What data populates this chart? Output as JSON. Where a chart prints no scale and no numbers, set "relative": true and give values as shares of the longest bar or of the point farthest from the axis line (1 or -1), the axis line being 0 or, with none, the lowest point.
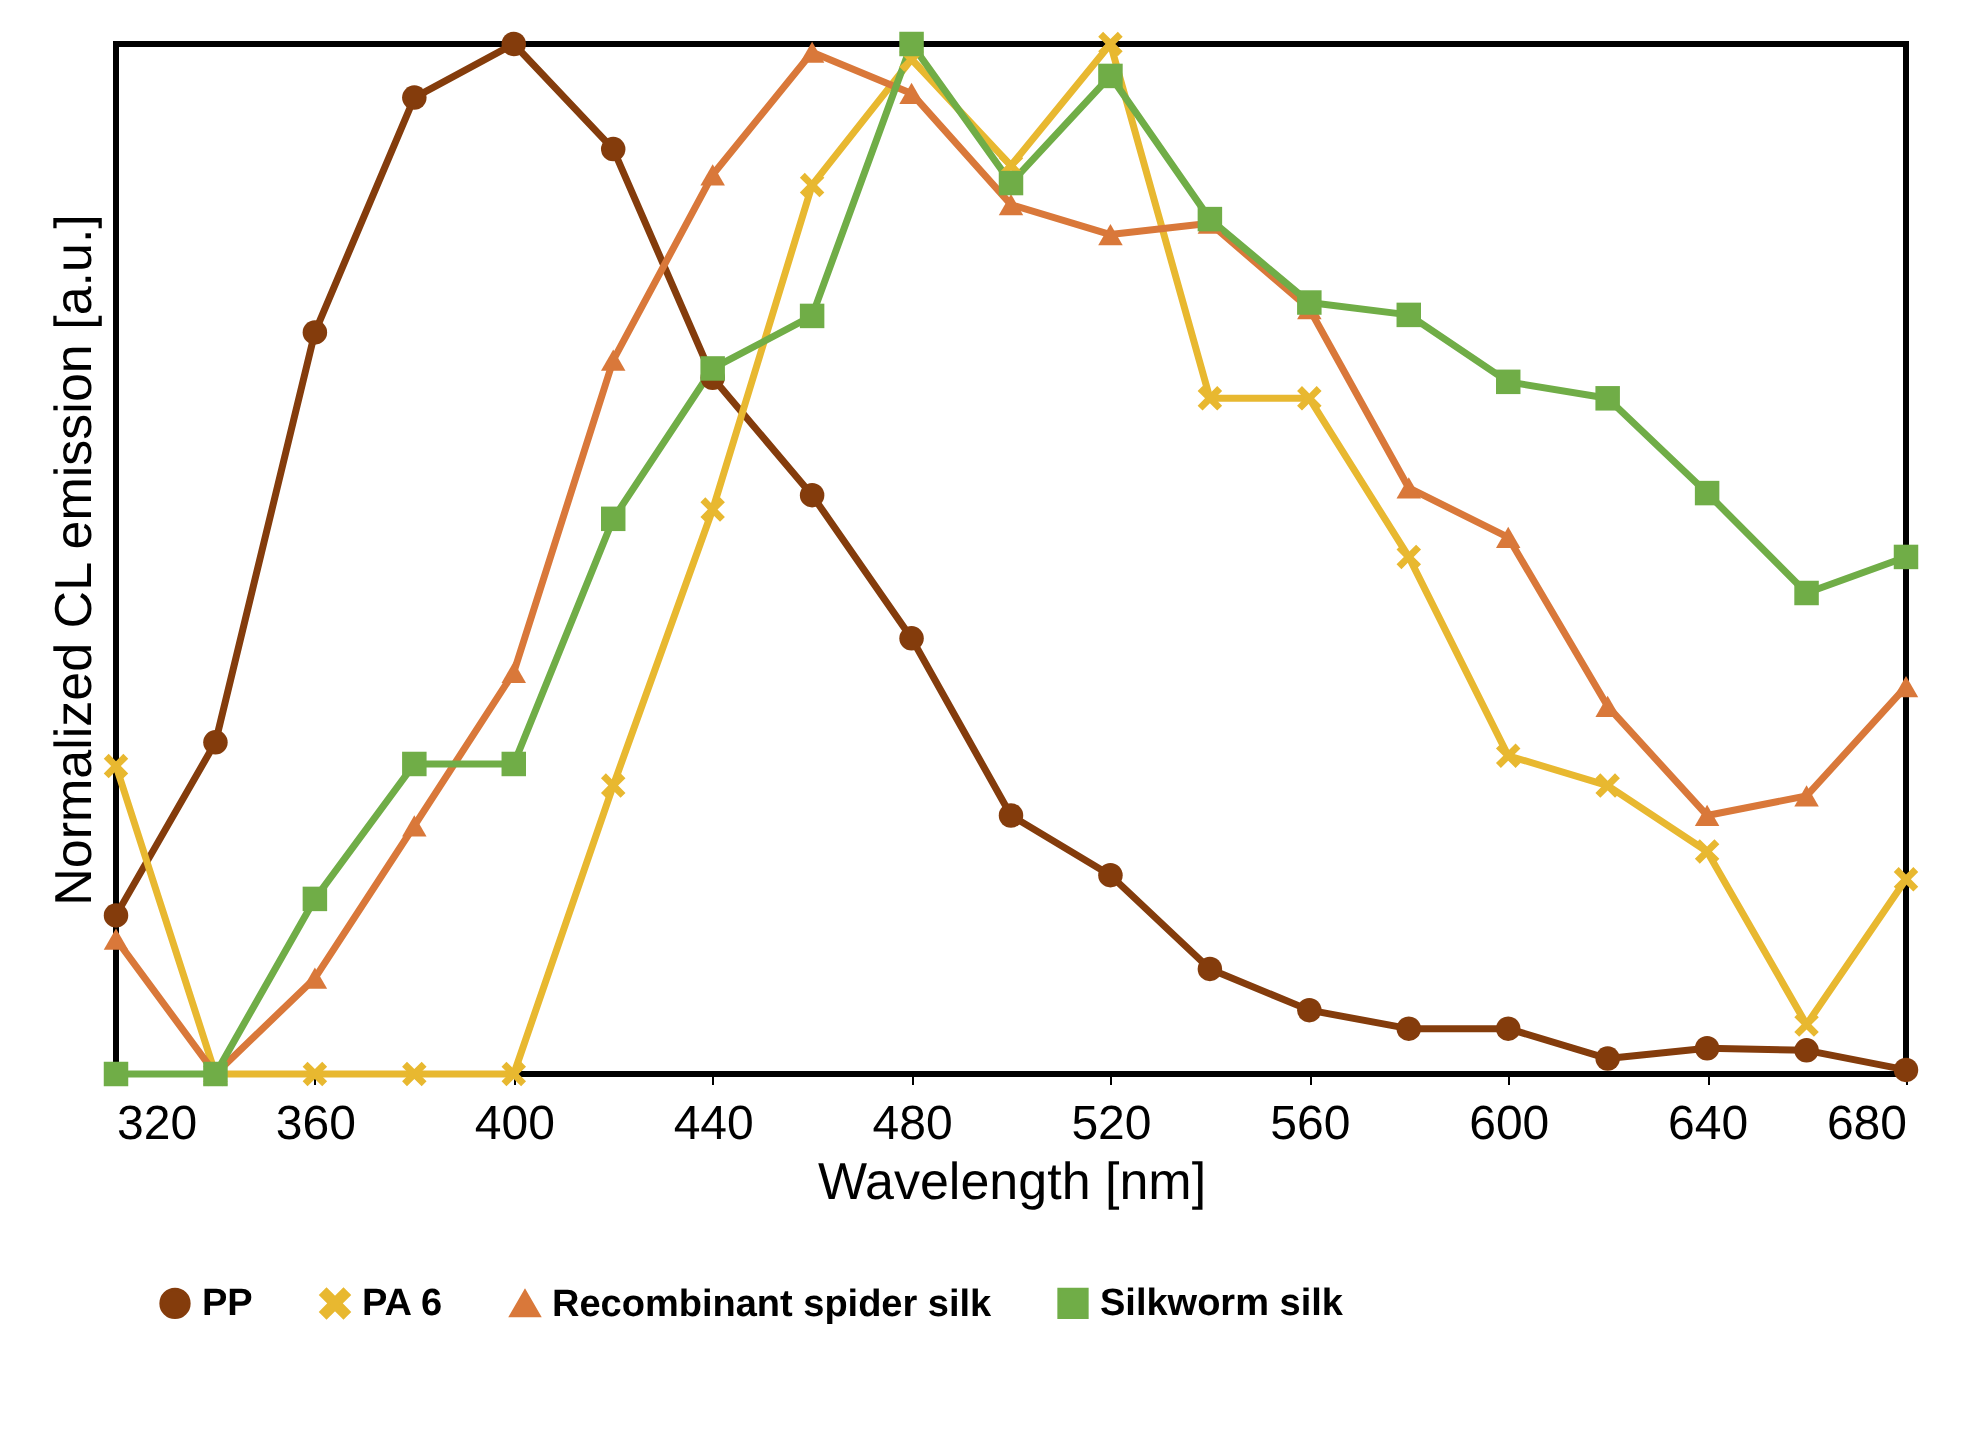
{
  "chart_data": {
    "type": "line",
    "xlabel": "Wavelength [nm]",
    "ylabel": "Normalized CL emission [a.u.]",
    "relative": true,
    "x": [
      320,
      340,
      360,
      380,
      400,
      420,
      440,
      460,
      480,
      500,
      520,
      540,
      560,
      580,
      600,
      620,
      640,
      660,
      680
    ],
    "xlim": [
      320,
      680
    ],
    "xticks": [
      320,
      360,
      400,
      440,
      480,
      520,
      560,
      600,
      640,
      680
    ],
    "legend": "bottom",
    "grid": false,
    "series": [
      {
        "name": "PP",
        "color": "#843c0c",
        "marker": "circle",
        "values": [
          0.154,
          0.322,
          0.72,
          0.948,
          1,
          0.898,
          0.676,
          0.562,
          0.423,
          0.251,
          0.193,
          0.102,
          0.062,
          0.044,
          0.044,
          0.015,
          0.025,
          0.023,
          0.004
        ]
      },
      {
        "name": "PA 6",
        "color": "#e8b830",
        "marker": "cross",
        "values": [
          0.299,
          0,
          0,
          0,
          0,
          0.28,
          0.548,
          0.863,
          0.985,
          0.882,
          1,
          0.656,
          0.656,
          0.502,
          0.309,
          0.28,
          0.216,
          0.048,
          0.189
        ]
      },
      {
        "name": "Recombinant spider silk",
        "color": "#d9783a",
        "marker": "triangle",
        "values": [
          0.131,
          0,
          0.093,
          0.241,
          0.39,
          0.693,
          0.873,
          0.992,
          0.952,
          0.844,
          0.815,
          0.826,
          0.743,
          0.569,
          0.521,
          0.357,
          0.251,
          0.27,
          0.376
        ]
      },
      {
        "name": "Silkworm silk",
        "color": "#70ad47",
        "marker": "square",
        "values": [
          0,
          0,
          0.17,
          0.301,
          0.301,
          0.539,
          0.685,
          0.736,
          1,
          0.865,
          0.969,
          0.83,
          0.749,
          0.737,
          0.672,
          0.656,
          0.564,
          0.467,
          0.502
        ]
      }
    ]
  }
}
